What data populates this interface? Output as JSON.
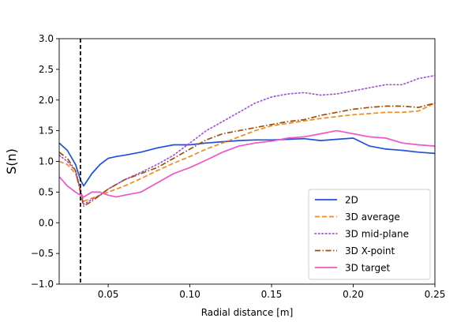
{
  "chart_data": {
    "type": "line",
    "title": "",
    "xlabel": "Radial distance [m]",
    "ylabel": "S(n)",
    "xlim": [
      0.02,
      0.25
    ],
    "ylim": [
      -1.0,
      3.0
    ],
    "xticks": [
      0.05,
      0.1,
      0.15,
      0.2,
      0.25
    ],
    "xtick_labels": [
      "0.05",
      "0.10",
      "0.15",
      "0.20",
      "0.25"
    ],
    "yticks": [
      -1.0,
      -0.5,
      0.0,
      0.5,
      1.0,
      1.5,
      2.0,
      2.5,
      3.0
    ],
    "ytick_labels": [
      "−1.0",
      "−0.5",
      "0.0",
      "0.5",
      "1.0",
      "1.5",
      "2.0",
      "2.5",
      "3.0"
    ],
    "grid": false,
    "legend_position": "lower-right",
    "vertical_line": {
      "x": 0.033,
      "style": "dashed",
      "color": "#000000"
    },
    "series": [
      {
        "name": "2D",
        "color": "#1f4fe0",
        "dash": "solid",
        "x": [
          0.02,
          0.025,
          0.03,
          0.033,
          0.035,
          0.04,
          0.045,
          0.05,
          0.055,
          0.06,
          0.07,
          0.08,
          0.09,
          0.1,
          0.11,
          0.12,
          0.13,
          0.14,
          0.15,
          0.16,
          0.17,
          0.18,
          0.19,
          0.2,
          0.21,
          0.22,
          0.23,
          0.24,
          0.25
        ],
        "y": [
          1.3,
          1.18,
          0.95,
          0.7,
          0.6,
          0.8,
          0.95,
          1.05,
          1.08,
          1.1,
          1.15,
          1.22,
          1.27,
          1.27,
          1.3,
          1.32,
          1.34,
          1.35,
          1.35,
          1.36,
          1.37,
          1.34,
          1.36,
          1.38,
          1.25,
          1.2,
          1.18,
          1.15,
          1.13
        ]
      },
      {
        "name": "3D average",
        "color": "#f28a1c",
        "dash": "dashed",
        "x": [
          0.02,
          0.025,
          0.03,
          0.033,
          0.035,
          0.04,
          0.045,
          0.05,
          0.06,
          0.07,
          0.08,
          0.09,
          0.1,
          0.11,
          0.12,
          0.13,
          0.14,
          0.15,
          0.16,
          0.17,
          0.18,
          0.19,
          0.2,
          0.21,
          0.22,
          0.23,
          0.24,
          0.25
        ],
        "y": [
          1.0,
          0.95,
          0.8,
          0.55,
          0.35,
          0.4,
          0.45,
          0.5,
          0.6,
          0.72,
          0.85,
          0.97,
          1.08,
          1.2,
          1.3,
          1.4,
          1.5,
          1.58,
          1.62,
          1.66,
          1.7,
          1.73,
          1.76,
          1.78,
          1.8,
          1.8,
          1.82,
          1.95
        ]
      },
      {
        "name": "3D mid-plane",
        "color": "#a84ee0",
        "dash": "dotted",
        "x": [
          0.02,
          0.025,
          0.03,
          0.033,
          0.035,
          0.04,
          0.045,
          0.05,
          0.06,
          0.07,
          0.08,
          0.09,
          0.1,
          0.11,
          0.12,
          0.13,
          0.14,
          0.15,
          0.16,
          0.17,
          0.18,
          0.19,
          0.2,
          0.21,
          0.22,
          0.23,
          0.24,
          0.25
        ],
        "y": [
          1.1,
          1.0,
          0.85,
          0.55,
          0.3,
          0.38,
          0.45,
          0.55,
          0.7,
          0.82,
          0.95,
          1.1,
          1.3,
          1.5,
          1.65,
          1.8,
          1.95,
          2.05,
          2.1,
          2.12,
          2.08,
          2.1,
          2.15,
          2.2,
          2.25,
          2.25,
          2.35,
          2.4
        ]
      },
      {
        "name": "3D X-point",
        "color": "#a04d0a",
        "dash": "dashdot",
        "x": [
          0.02,
          0.025,
          0.03,
          0.033,
          0.035,
          0.04,
          0.045,
          0.05,
          0.06,
          0.07,
          0.08,
          0.09,
          0.1,
          0.11,
          0.12,
          0.13,
          0.14,
          0.15,
          0.16,
          0.17,
          0.18,
          0.19,
          0.2,
          0.21,
          0.22,
          0.23,
          0.24,
          0.25
        ],
        "y": [
          1.15,
          1.05,
          0.85,
          0.5,
          0.27,
          0.35,
          0.45,
          0.55,
          0.7,
          0.8,
          0.9,
          1.05,
          1.2,
          1.35,
          1.45,
          1.5,
          1.55,
          1.6,
          1.65,
          1.68,
          1.75,
          1.8,
          1.85,
          1.88,
          1.9,
          1.9,
          1.88,
          1.95
        ]
      },
      {
        "name": "3D target",
        "color": "#ef55c4",
        "dash": "solid",
        "x": [
          0.02,
          0.025,
          0.03,
          0.033,
          0.035,
          0.04,
          0.045,
          0.05,
          0.055,
          0.06,
          0.07,
          0.08,
          0.09,
          0.1,
          0.11,
          0.12,
          0.13,
          0.14,
          0.15,
          0.16,
          0.17,
          0.18,
          0.19,
          0.2,
          0.21,
          0.22,
          0.23,
          0.24,
          0.25
        ],
        "y": [
          0.75,
          0.6,
          0.5,
          0.45,
          0.42,
          0.5,
          0.5,
          0.45,
          0.42,
          0.45,
          0.5,
          0.65,
          0.8,
          0.9,
          1.02,
          1.15,
          1.25,
          1.3,
          1.33,
          1.38,
          1.4,
          1.45,
          1.5,
          1.45,
          1.4,
          1.38,
          1.3,
          1.27,
          1.25
        ]
      }
    ]
  }
}
